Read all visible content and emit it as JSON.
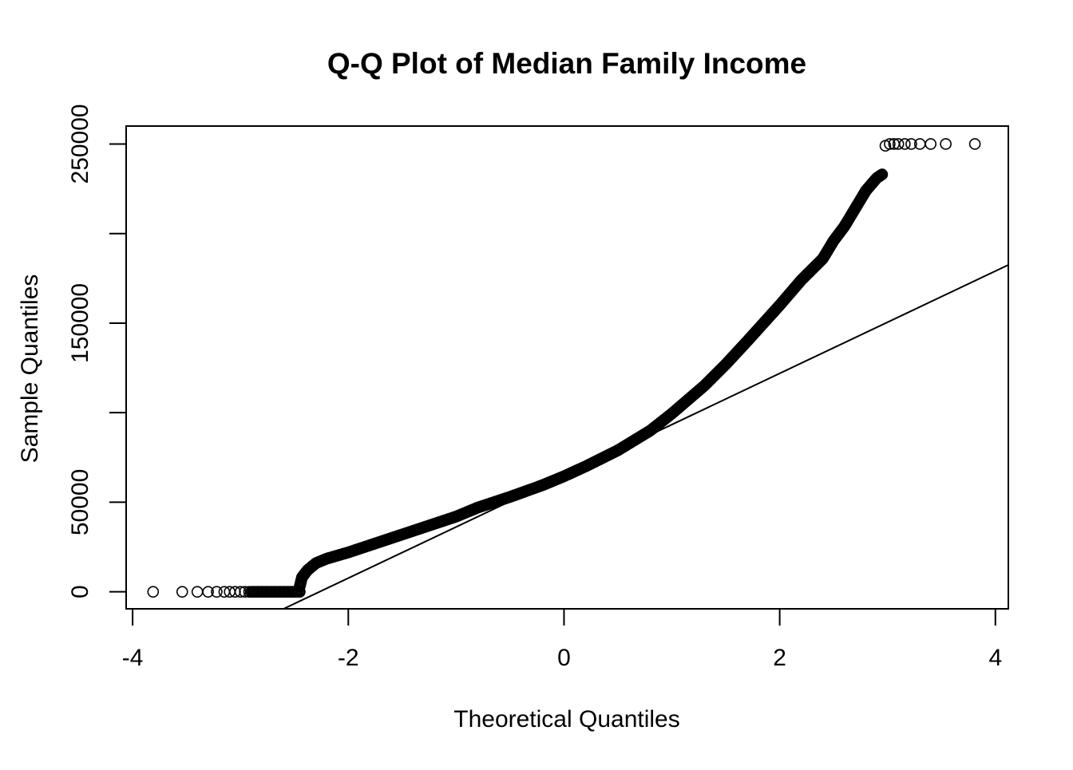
{
  "chart_data": {
    "type": "scatter",
    "title": "Q-Q Plot of Median Family Income",
    "xlabel": "Theoretical Quantiles",
    "ylabel": "Sample Quantiles",
    "xlim": [
      -4.06,
      4.12
    ],
    "ylim": [
      -9500,
      260000
    ],
    "x_ticks": [
      -4,
      -2,
      0,
      2,
      4
    ],
    "x_tick_labels": [
      "-4",
      "-2",
      "0",
      "2",
      "4"
    ],
    "y_ticks": [
      0,
      50000,
      100000,
      150000,
      200000,
      250000
    ],
    "y_tick_labels": [
      "0",
      "50000",
      "",
      "150000",
      "",
      "250000"
    ],
    "grid": false,
    "marker": "open-circle",
    "color": "#000000",
    "reference_line": {
      "x": [
        -2.6,
        4.12
      ],
      "y": [
        -9500,
        182500
      ]
    },
    "sample_curve": {
      "x": [
        -2.45,
        -2.43,
        -2.38,
        -2.3,
        -2.2,
        -2.0,
        -1.8,
        -1.5,
        -1.2,
        -1.0,
        -0.8,
        -0.5,
        -0.2,
        0.0,
        0.2,
        0.5,
        0.8,
        1.0,
        1.3,
        1.5,
        1.7,
        2.0,
        2.2,
        2.4,
        2.5,
        2.6,
        2.7,
        2.8,
        2.9,
        2.95
      ],
      "y": [
        3000,
        8000,
        12000,
        16000,
        18500,
        22000,
        26000,
        32000,
        38000,
        42000,
        47000,
        53000,
        59500,
        64500,
        70000,
        79000,
        90000,
        99500,
        115000,
        127000,
        140000,
        160000,
        174000,
        186000,
        196000,
        204000,
        214000,
        224000,
        231000,
        233000
      ]
    },
    "lower_tail": {
      "x": [
        -3.81,
        -3.54,
        -3.4,
        -3.3,
        -3.22,
        -3.15,
        -3.1,
        -3.05,
        -3.0,
        -2.96,
        -2.92,
        -2.88,
        -2.84,
        -2.8,
        -2.76,
        -2.72,
        -2.68,
        -2.64,
        -2.6,
        -2.56,
        -2.52,
        -2.48,
        -2.45
      ],
      "y": [
        0,
        0,
        0,
        0,
        0,
        0,
        0,
        0,
        0,
        0,
        0,
        0,
        0,
        0,
        0,
        0,
        0,
        0,
        0,
        0,
        0,
        0,
        0
      ]
    },
    "upper_tail": {
      "x": [
        2.98,
        3.02,
        3.06,
        3.1,
        3.16,
        3.22,
        3.3,
        3.4,
        3.54,
        3.81
      ],
      "y": [
        249000,
        250000,
        250000,
        250000,
        250000,
        250000,
        250000,
        250000,
        250000,
        250000
      ]
    }
  }
}
